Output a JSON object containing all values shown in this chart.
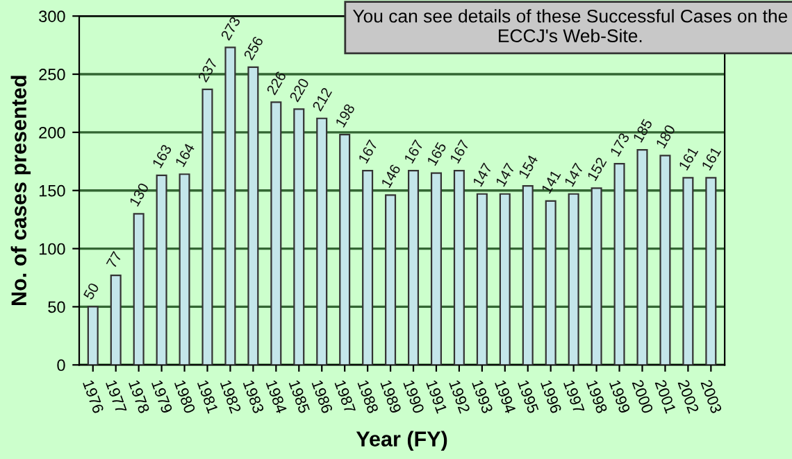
{
  "chart_data": {
    "type": "bar",
    "xlabel": "Year (FY)",
    "ylabel": "No. of cases presented",
    "categories": [
      "1976",
      "1977",
      "1978",
      "1979",
      "1980",
      "1981",
      "1982",
      "1983",
      "1984",
      "1985",
      "1986",
      "1987",
      "1988",
      "1989",
      "1990",
      "1991",
      "1992",
      "1993",
      "1994",
      "1995",
      "1996",
      "1997",
      "1998",
      "1999",
      "2000",
      "2001",
      "2002",
      "2003"
    ],
    "values": [
      50,
      77,
      130,
      163,
      164,
      237,
      273,
      256,
      226,
      220,
      212,
      198,
      167,
      146,
      167,
      165,
      167,
      147,
      147,
      154,
      141,
      147,
      152,
      173,
      185,
      180,
      161,
      161
    ],
    "color": "#c4e6ea",
    "ylim": [
      0,
      300
    ],
    "yticks": [
      0,
      50,
      100,
      150,
      200,
      250,
      300
    ],
    "grid": "y",
    "data_labels": true,
    "annotations": [
      "You can see details of these Successful Cases on the ECCJ's Web-Site."
    ]
  }
}
